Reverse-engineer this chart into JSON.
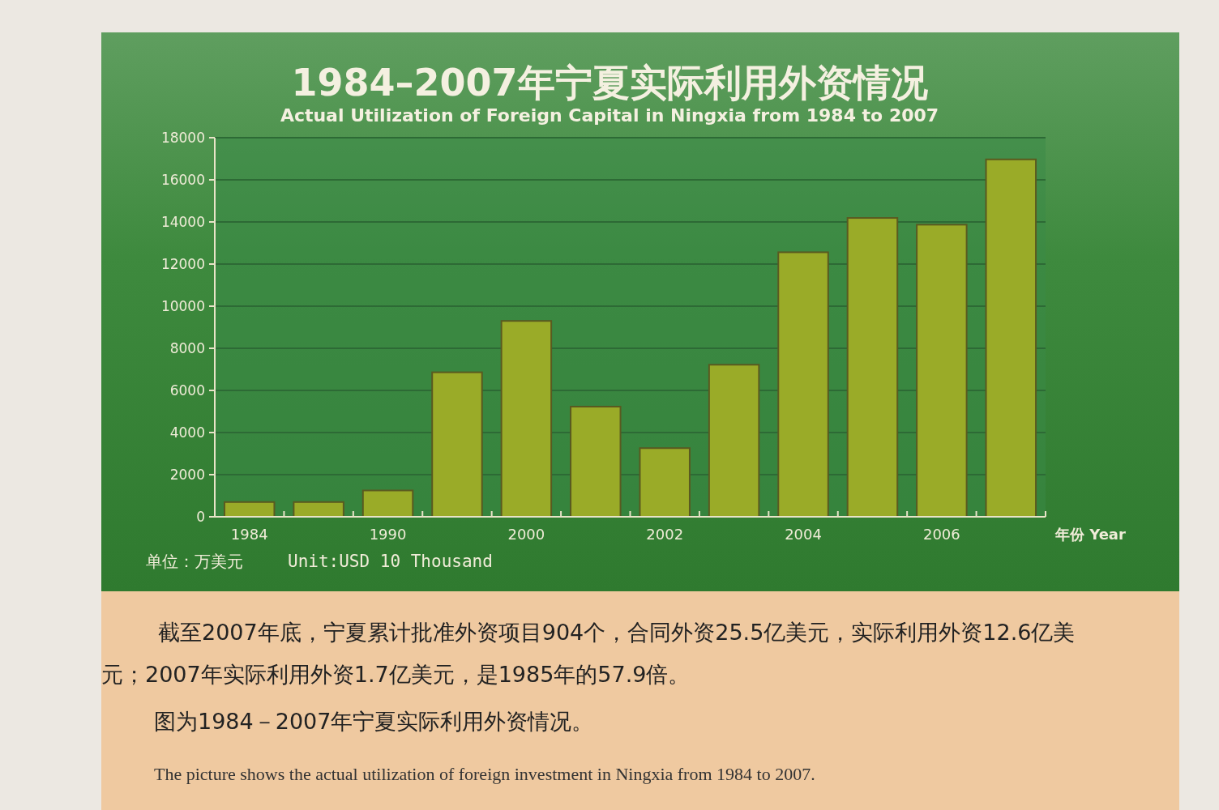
{
  "chart_data": {
    "type": "bar",
    "title": "1984–2007年宁夏实际利用外资情况",
    "subtitle": "Actual Utilization of  Foreign Capital  in Ningxia from 1984 to 2007",
    "xlabel": "年份 Year",
    "categories": [
      "1984",
      null,
      "1990",
      null,
      "2000",
      null,
      "2002",
      null,
      "2004",
      null,
      "2006",
      null
    ],
    "values": [
      700,
      700,
      1250,
      6860,
      9300,
      5230,
      3260,
      7220,
      12560,
      14190,
      13870,
      16970
    ],
    "color": "#9aab28",
    "ylim": [
      0,
      18000
    ],
    "yticks": [
      0,
      2000,
      4000,
      6000,
      8000,
      10000,
      12000,
      14000,
      16000,
      18000
    ],
    "grid": "y",
    "annotations": [
      "单位：万美元",
      "Unit:USD 10 Thousand",
      "截至2007年底，宁夏累计批准外资项目904个，合同外资25.5亿美元，实际利用外资12.6亿美元；2007年实际利用外资1.7亿美元，是1985年的57.9倍。",
      "图为1984－2007年宁夏实际利用外资情况。",
      "The picture shows the actual utilization of foreign investment in Ningxia from 1984 to 2007."
    ]
  }
}
